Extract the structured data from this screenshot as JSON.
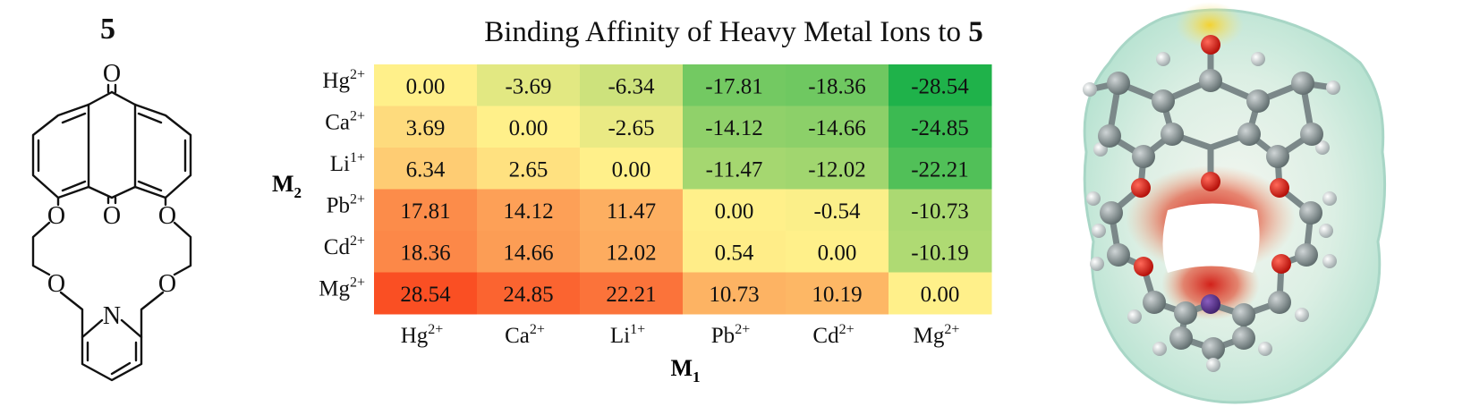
{
  "compound": {
    "label": "5",
    "atoms": {
      "oxygen": "O",
      "nitrogen": "N"
    }
  },
  "title": {
    "prefix": "Binding Affinity of Heavy Metal Ions to ",
    "bold": "5"
  },
  "chart_data": {
    "type": "heatmap",
    "title": "Binding Affinity of Heavy Metal Ions to 5",
    "xlabel": {
      "main": "M",
      "sub": "1"
    },
    "ylabel": {
      "main": "M",
      "sub": "2"
    },
    "columns": [
      {
        "base": "Hg",
        "sup": "2+"
      },
      {
        "base": "Ca",
        "sup": "2+"
      },
      {
        "base": "Li",
        "sup": "1+"
      },
      {
        "base": "Pb",
        "sup": "2+"
      },
      {
        "base": "Cd",
        "sup": "2+"
      },
      {
        "base": "Mg",
        "sup": "2+"
      }
    ],
    "rows": [
      {
        "base": "Hg",
        "sup": "2+"
      },
      {
        "base": "Ca",
        "sup": "2+"
      },
      {
        "base": "Li",
        "sup": "1+"
      },
      {
        "base": "Pb",
        "sup": "2+"
      },
      {
        "base": "Cd",
        "sup": "2+"
      },
      {
        "base": "Mg",
        "sup": "2+"
      }
    ],
    "values": [
      [
        "0.00",
        "-3.69",
        "-6.34",
        "-17.81",
        "-18.36",
        "-28.54"
      ],
      [
        "3.69",
        "0.00",
        "-2.65",
        "-14.12",
        "-14.66",
        "-24.85"
      ],
      [
        "6.34",
        "2.65",
        "0.00",
        "-11.47",
        "-12.02",
        "-22.21"
      ],
      [
        "17.81",
        "14.12",
        "11.47",
        "0.00",
        "-0.54",
        "-10.73"
      ],
      [
        "18.36",
        "14.66",
        "12.02",
        "0.54",
        "0.00",
        "-10.19"
      ],
      [
        "28.54",
        "24.85",
        "22.21",
        "10.73",
        "10.19",
        "0.00"
      ]
    ],
    "colorscale": {
      "low": "#1fb24a",
      "mid": "#fff08a",
      "high": "#fa4f23",
      "range": [
        -28.54,
        28.54
      ]
    }
  }
}
